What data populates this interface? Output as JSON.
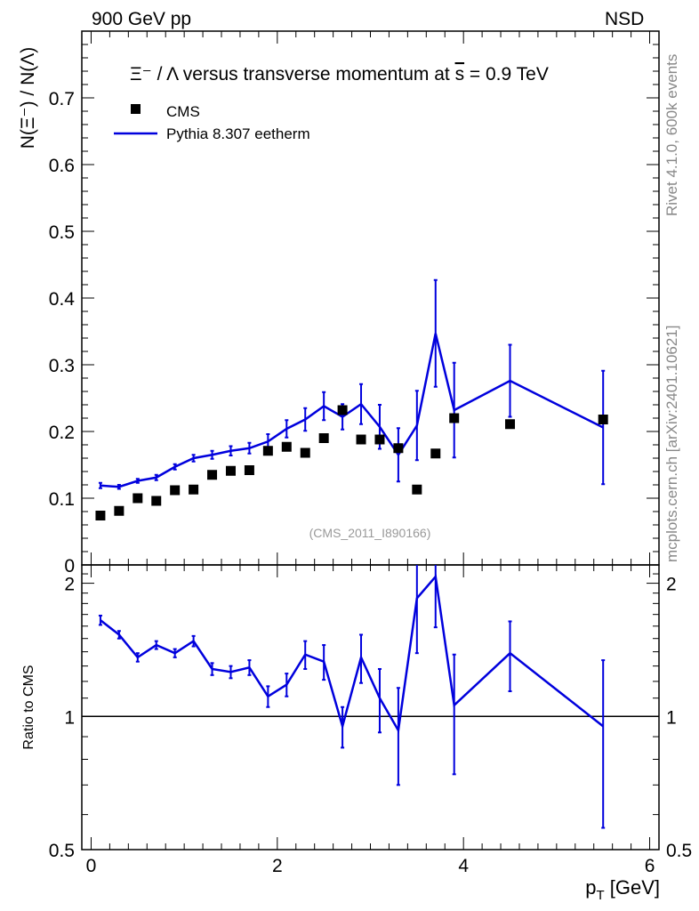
{
  "header": {
    "left": "900 GeV pp",
    "right": "NSD"
  },
  "side_labels": {
    "rivet": "Rivet 4.1.0,  600k events",
    "mcplots": "mcplots.cern.ch [arXiv:2401.10621]"
  },
  "colors": {
    "data": "#000000",
    "mc": "#0000dd",
    "watermark": "#999999",
    "side": "#888888"
  },
  "chart_data": [
    {
      "type": "scatter",
      "title_prefix": "Ξ⁻ / Λ versus transverse momentum at ",
      "title_suffix": " = 0.9 TeV",
      "title_sqrt": "s",
      "ylabel": "N(Ξ⁻)  /  N(Λ)",
      "xlabel": "",
      "xlim": [
        -0.1,
        6.1
      ],
      "ylim": [
        0,
        0.8
      ],
      "yticks": [
        0,
        0.1,
        0.2,
        0.3,
        0.4,
        0.5,
        0.6,
        0.7
      ],
      "ytick_labels": [
        "0",
        "0.1",
        "0.2",
        "0.3",
        "0.4",
        "0.5",
        "0.6",
        "0.7"
      ],
      "watermark": "(CMS_2011_I890166)",
      "legend": [
        "CMS",
        "Pythia 8.307 eetherm"
      ],
      "series": [
        {
          "name": "CMS",
          "style": "markers",
          "x": [
            0.1,
            0.3,
            0.5,
            0.7,
            0.9,
            1.1,
            1.3,
            1.5,
            1.7,
            1.9,
            2.1,
            2.3,
            2.5,
            2.7,
            2.9,
            3.1,
            3.3,
            3.5,
            3.7,
            3.9,
            4.5,
            5.5
          ],
          "y": [
            0.074,
            0.081,
            0.1,
            0.096,
            0.112,
            0.113,
            0.135,
            0.141,
            0.142,
            0.171,
            0.177,
            0.168,
            0.19,
            0.232,
            0.188,
            0.188,
            0.175,
            0.113,
            0.167,
            0.22,
            0.211,
            0.218
          ]
        },
        {
          "name": "Pythia 8.307 eetherm",
          "style": "line",
          "x": [
            0.1,
            0.3,
            0.5,
            0.7,
            0.9,
            1.1,
            1.3,
            1.5,
            1.7,
            1.9,
            2.1,
            2.3,
            2.5,
            2.7,
            2.9,
            3.1,
            3.3,
            3.5,
            3.7,
            3.9,
            4.5,
            5.5
          ],
          "y": [
            0.119,
            0.117,
            0.126,
            0.131,
            0.147,
            0.16,
            0.165,
            0.171,
            0.175,
            0.185,
            0.204,
            0.218,
            0.238,
            0.222,
            0.241,
            0.207,
            0.165,
            0.209,
            0.347,
            0.232,
            0.276,
            0.206
          ],
          "err": [
            0.004,
            0.003,
            0.003,
            0.004,
            0.004,
            0.005,
            0.006,
            0.007,
            0.008,
            0.011,
            0.013,
            0.017,
            0.021,
            0.019,
            0.03,
            0.033,
            0.04,
            0.052,
            0.08,
            0.071,
            0.054,
            0.085
          ]
        }
      ]
    },
    {
      "type": "line",
      "ylabel": "Ratio to CMS",
      "xlabel": "p_T [GeV]",
      "xlim": [
        -0.1,
        6.1
      ],
      "ylim": [
        0.5,
        2.2
      ],
      "log_y": true,
      "yticks": [
        0.5,
        1,
        2
      ],
      "ytick_labels": [
        "0.5",
        "1",
        "2"
      ],
      "xticks": [
        0,
        2,
        4,
        6
      ],
      "xtick_labels": [
        "0",
        "2",
        "4",
        "6"
      ],
      "reference_line": 1,
      "series": [
        {
          "name": "Pythia 8.307 eetherm / CMS",
          "x": [
            0.1,
            0.3,
            0.5,
            0.7,
            0.9,
            1.1,
            1.3,
            1.5,
            1.7,
            1.9,
            2.1,
            2.3,
            2.5,
            2.7,
            2.9,
            3.1,
            3.3,
            3.5,
            3.7,
            3.9,
            4.5,
            5.5
          ],
          "y": [
            1.65,
            1.53,
            1.36,
            1.45,
            1.39,
            1.48,
            1.28,
            1.26,
            1.29,
            1.11,
            1.18,
            1.38,
            1.33,
            0.95,
            1.36,
            1.1,
            0.93,
            1.85,
            2.07,
            1.06,
            1.39,
            0.95
          ],
          "err": [
            0.04,
            0.03,
            0.03,
            0.03,
            0.03,
            0.04,
            0.04,
            0.04,
            0.05,
            0.06,
            0.07,
            0.1,
            0.12,
            0.1,
            0.17,
            0.18,
            0.23,
            0.46,
            0.48,
            0.32,
            0.25,
            0.39
          ]
        }
      ]
    }
  ]
}
